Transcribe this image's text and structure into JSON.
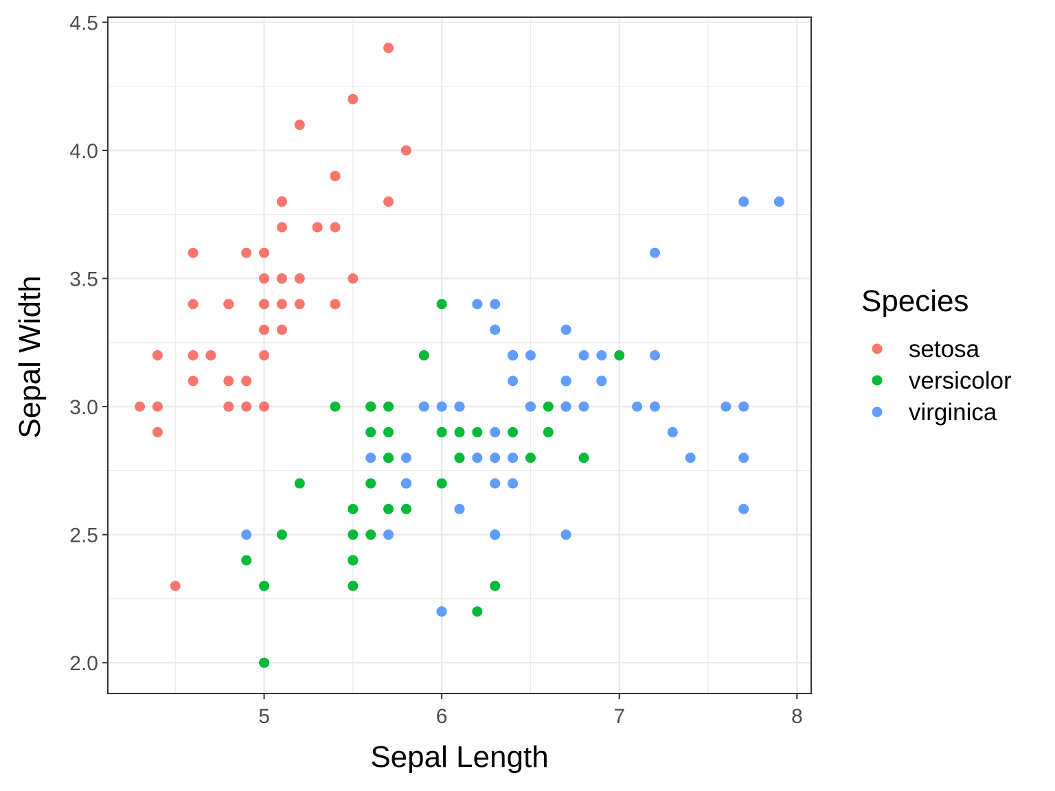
{
  "chart_data": {
    "type": "scatter",
    "title": "",
    "xlabel": "Sepal Length",
    "ylabel": "Sepal Width",
    "xlim": [
      4.12,
      8.08
    ],
    "ylim": [
      1.88,
      4.52
    ],
    "x_ticks": [
      5,
      6,
      7,
      8
    ],
    "x_tick_labels": [
      "5",
      "6",
      "7",
      "8"
    ],
    "y_ticks": [
      2.0,
      2.5,
      3.0,
      3.5,
      4.0,
      4.5
    ],
    "y_tick_labels": [
      "2.0",
      "2.5",
      "3.0",
      "3.5",
      "4.0",
      "4.5"
    ],
    "grid": true,
    "legend": {
      "title": "Species",
      "position": "right"
    },
    "series": [
      {
        "name": "setosa",
        "color": "#F8766D",
        "points": [
          [
            5.1,
            3.5
          ],
          [
            4.9,
            3.0
          ],
          [
            4.7,
            3.2
          ],
          [
            4.6,
            3.1
          ],
          [
            5.0,
            3.6
          ],
          [
            5.4,
            3.9
          ],
          [
            4.6,
            3.4
          ],
          [
            5.0,
            3.4
          ],
          [
            4.4,
            2.9
          ],
          [
            4.9,
            3.1
          ],
          [
            5.4,
            3.7
          ],
          [
            4.8,
            3.4
          ],
          [
            4.8,
            3.0
          ],
          [
            4.3,
            3.0
          ],
          [
            5.8,
            4.0
          ],
          [
            5.7,
            4.4
          ],
          [
            5.4,
            3.9
          ],
          [
            5.1,
            3.5
          ],
          [
            5.7,
            3.8
          ],
          [
            5.1,
            3.8
          ],
          [
            5.4,
            3.4
          ],
          [
            5.1,
            3.7
          ],
          [
            4.6,
            3.6
          ],
          [
            5.1,
            3.3
          ],
          [
            4.8,
            3.4
          ],
          [
            5.0,
            3.0
          ],
          [
            5.0,
            3.4
          ],
          [
            5.2,
            3.5
          ],
          [
            5.2,
            3.4
          ],
          [
            4.7,
            3.2
          ],
          [
            4.8,
            3.1
          ],
          [
            5.4,
            3.4
          ],
          [
            5.2,
            4.1
          ],
          [
            5.5,
            4.2
          ],
          [
            4.9,
            3.1
          ],
          [
            5.0,
            3.2
          ],
          [
            5.5,
            3.5
          ],
          [
            4.9,
            3.6
          ],
          [
            4.4,
            3.0
          ],
          [
            5.1,
            3.4
          ],
          [
            5.0,
            3.5
          ],
          [
            4.5,
            2.3
          ],
          [
            4.4,
            3.2
          ],
          [
            5.0,
            3.5
          ],
          [
            5.1,
            3.8
          ],
          [
            4.8,
            3.0
          ],
          [
            5.1,
            3.8
          ],
          [
            4.6,
            3.2
          ],
          [
            5.3,
            3.7
          ],
          [
            5.0,
            3.3
          ]
        ]
      },
      {
        "name": "versicolor",
        "color": "#00BA38",
        "points": [
          [
            7.0,
            3.2
          ],
          [
            6.4,
            3.2
          ],
          [
            6.9,
            3.1
          ],
          [
            5.5,
            2.3
          ],
          [
            6.5,
            2.8
          ],
          [
            5.7,
            2.8
          ],
          [
            6.3,
            3.3
          ],
          [
            4.9,
            2.4
          ],
          [
            6.6,
            2.9
          ],
          [
            5.2,
            2.7
          ],
          [
            5.0,
            2.0
          ],
          [
            5.9,
            3.0
          ],
          [
            6.0,
            2.2
          ],
          [
            6.1,
            2.9
          ],
          [
            5.6,
            2.9
          ],
          [
            6.7,
            3.1
          ],
          [
            5.6,
            3.0
          ],
          [
            5.8,
            2.7
          ],
          [
            6.2,
            2.2
          ],
          [
            5.6,
            2.5
          ],
          [
            5.9,
            3.2
          ],
          [
            6.1,
            2.8
          ],
          [
            6.3,
            2.5
          ],
          [
            6.1,
            2.8
          ],
          [
            6.4,
            2.9
          ],
          [
            6.6,
            3.0
          ],
          [
            6.8,
            2.8
          ],
          [
            6.7,
            3.0
          ],
          [
            6.0,
            2.9
          ],
          [
            5.7,
            2.6
          ],
          [
            5.5,
            2.4
          ],
          [
            5.5,
            2.4
          ],
          [
            5.8,
            2.7
          ],
          [
            6.0,
            2.7
          ],
          [
            5.4,
            3.0
          ],
          [
            6.0,
            3.4
          ],
          [
            6.7,
            3.1
          ],
          [
            6.3,
            2.3
          ],
          [
            5.6,
            3.0
          ],
          [
            5.5,
            2.5
          ],
          [
            5.5,
            2.6
          ],
          [
            6.1,
            3.0
          ],
          [
            5.8,
            2.6
          ],
          [
            5.0,
            2.3
          ],
          [
            5.6,
            2.7
          ],
          [
            5.7,
            3.0
          ],
          [
            5.7,
            2.9
          ],
          [
            6.2,
            2.9
          ],
          [
            5.1,
            2.5
          ],
          [
            5.7,
            2.8
          ]
        ]
      },
      {
        "name": "virginica",
        "color": "#619CFF",
        "points": [
          [
            6.3,
            3.3
          ],
          [
            5.8,
            2.7
          ],
          [
            7.1,
            3.0
          ],
          [
            6.3,
            2.9
          ],
          [
            6.5,
            3.0
          ],
          [
            7.6,
            3.0
          ],
          [
            4.9,
            2.5
          ],
          [
            7.3,
            2.9
          ],
          [
            6.7,
            2.5
          ],
          [
            7.2,
            3.6
          ],
          [
            6.5,
            3.2
          ],
          [
            6.4,
            2.7
          ],
          [
            6.8,
            3.0
          ],
          [
            5.7,
            2.5
          ],
          [
            5.8,
            2.8
          ],
          [
            6.4,
            3.2
          ],
          [
            6.5,
            3.0
          ],
          [
            7.7,
            3.8
          ],
          [
            7.7,
            2.6
          ],
          [
            6.0,
            2.2
          ],
          [
            6.9,
            3.2
          ],
          [
            5.6,
            2.8
          ],
          [
            7.7,
            2.8
          ],
          [
            6.3,
            2.7
          ],
          [
            6.7,
            3.3
          ],
          [
            7.2,
            3.2
          ],
          [
            6.2,
            2.8
          ],
          [
            6.1,
            3.0
          ],
          [
            6.4,
            2.8
          ],
          [
            7.2,
            3.0
          ],
          [
            7.4,
            2.8
          ],
          [
            7.9,
            3.8
          ],
          [
            6.4,
            2.8
          ],
          [
            6.3,
            2.8
          ],
          [
            6.1,
            2.6
          ],
          [
            7.7,
            3.0
          ],
          [
            6.3,
            3.4
          ],
          [
            6.4,
            3.1
          ],
          [
            6.0,
            3.0
          ],
          [
            6.9,
            3.1
          ],
          [
            6.7,
            3.1
          ],
          [
            6.9,
            3.1
          ],
          [
            5.8,
            2.7
          ],
          [
            6.8,
            3.2
          ],
          [
            6.7,
            3.3
          ],
          [
            6.7,
            3.0
          ],
          [
            6.3,
            2.5
          ],
          [
            6.5,
            3.0
          ],
          [
            6.2,
            3.4
          ],
          [
            5.9,
            3.0
          ]
        ]
      }
    ]
  }
}
